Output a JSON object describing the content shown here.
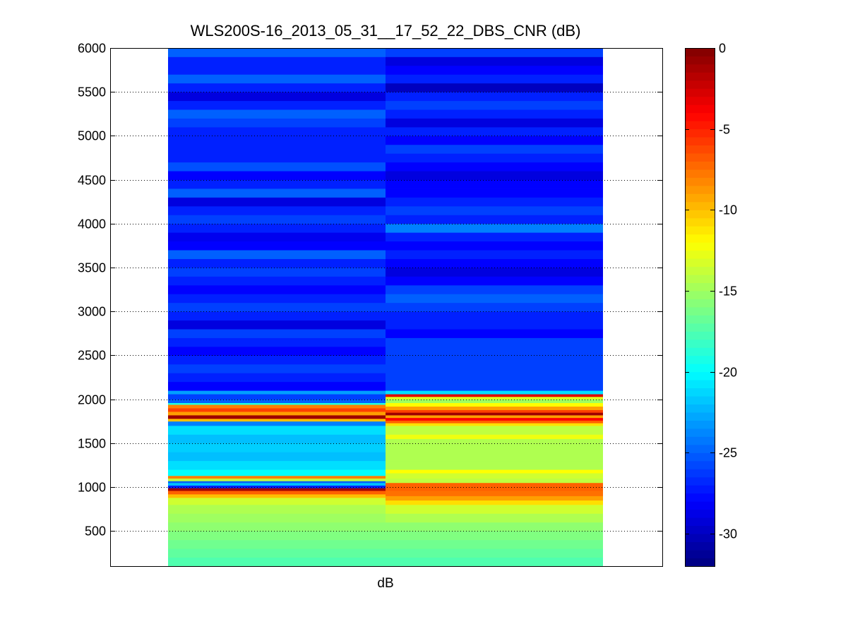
{
  "chart_data": {
    "type": "heatmap",
    "title": "WLS200S-16_2013_05_31__17_52_22_DBS_CNR (dB)",
    "xlabel": "dB",
    "ylabel": "",
    "ylim": [
      100,
      6000
    ],
    "yticks": [
      500,
      1000,
      1500,
      2000,
      2500,
      3000,
      3500,
      4000,
      4500,
      5000,
      5500,
      6000
    ],
    "grid": true,
    "colormap": "jet",
    "colorbar": {
      "range": [
        -32,
        0
      ],
      "ticks": [
        0,
        -5,
        -10,
        -15,
        -20,
        -25,
        -30
      ],
      "tick_labels": [
        "0",
        "-5",
        "-10",
        "-15",
        "-20",
        "-25",
        "-30"
      ]
    },
    "row_height_m": 100,
    "columns": [
      {
        "rows": [
          [
            100,
            200,
            -17.5
          ],
          [
            200,
            300,
            -17
          ],
          [
            300,
            400,
            -16.5
          ],
          [
            400,
            500,
            -16
          ],
          [
            500,
            600,
            -15.5
          ],
          [
            600,
            700,
            -15
          ],
          [
            700,
            800,
            -14.5
          ],
          [
            800,
            880,
            -13.5
          ],
          [
            880,
            920,
            -10
          ],
          [
            920,
            960,
            -7
          ],
          [
            960,
            990,
            -1
          ],
          [
            990,
            1020,
            -27
          ],
          [
            1020,
            1050,
            -22
          ],
          [
            1050,
            1070,
            -25
          ],
          [
            1070,
            1100,
            -14
          ],
          [
            1100,
            1130,
            -8
          ],
          [
            1130,
            1200,
            -20
          ],
          [
            1200,
            1300,
            -21
          ],
          [
            1300,
            1400,
            -22
          ],
          [
            1400,
            1500,
            -21.5
          ],
          [
            1500,
            1600,
            -22
          ],
          [
            1600,
            1700,
            -21
          ],
          [
            1700,
            1750,
            -24
          ],
          [
            1750,
            1780,
            -10
          ],
          [
            1780,
            1820,
            -1
          ],
          [
            1820,
            1860,
            -9
          ],
          [
            1860,
            1900,
            -6
          ],
          [
            1900,
            1940,
            -8
          ],
          [
            1940,
            1960,
            -19
          ],
          [
            1960,
            2000,
            -25
          ],
          [
            2000,
            2060,
            -26
          ],
          [
            2060,
            2100,
            -23
          ],
          [
            2100,
            2200,
            -28
          ],
          [
            2200,
            2300,
            -27
          ],
          [
            2300,
            2400,
            -26
          ],
          [
            2400,
            2500,
            -27
          ],
          [
            2500,
            2600,
            -28
          ],
          [
            2600,
            2700,
            -27
          ],
          [
            2700,
            2800,
            -26
          ],
          [
            2800,
            2900,
            -29
          ],
          [
            2900,
            3000,
            -27
          ],
          [
            3000,
            3100,
            -26
          ],
          [
            3100,
            3200,
            -27
          ],
          [
            3200,
            3300,
            -28
          ],
          [
            3300,
            3400,
            -27
          ],
          [
            3400,
            3500,
            -26
          ],
          [
            3500,
            3600,
            -27
          ],
          [
            3600,
            3700,
            -25
          ],
          [
            3700,
            3800,
            -28
          ],
          [
            3800,
            3900,
            -28.5
          ],
          [
            3900,
            4000,
            -27
          ],
          [
            4000,
            4100,
            -26
          ],
          [
            4100,
            4200,
            -27
          ],
          [
            4200,
            4300,
            -29
          ],
          [
            4300,
            4400,
            -25
          ],
          [
            4400,
            4500,
            -27
          ],
          [
            4500,
            4600,
            -28
          ],
          [
            4600,
            4700,
            -25.5
          ],
          [
            4700,
            4800,
            -27
          ],
          [
            4800,
            4900,
            -27
          ],
          [
            4900,
            5000,
            -27
          ],
          [
            5000,
            5100,
            -27
          ],
          [
            5100,
            5200,
            -26
          ],
          [
            5200,
            5300,
            -25
          ],
          [
            5300,
            5400,
            -27
          ],
          [
            5400,
            5500,
            -29
          ],
          [
            5500,
            5600,
            -27
          ],
          [
            5600,
            5700,
            -25
          ],
          [
            5700,
            5800,
            -27
          ],
          [
            5800,
            5900,
            -27
          ],
          [
            5900,
            6000,
            -25
          ]
        ]
      },
      {
        "rows": [
          [
            100,
            200,
            -17.5
          ],
          [
            200,
            300,
            -17
          ],
          [
            300,
            400,
            -16.5
          ],
          [
            400,
            500,
            -16
          ],
          [
            500,
            600,
            -15.5
          ],
          [
            600,
            700,
            -14.5
          ],
          [
            700,
            800,
            -13.5
          ],
          [
            800,
            850,
            -11
          ],
          [
            850,
            900,
            -9
          ],
          [
            900,
            960,
            -7.5
          ],
          [
            960,
            1050,
            -7
          ],
          [
            1050,
            1100,
            -14
          ],
          [
            1100,
            1160,
            -13.5
          ],
          [
            1160,
            1200,
            -12
          ],
          [
            1200,
            1300,
            -14.5
          ],
          [
            1300,
            1400,
            -14.5
          ],
          [
            1400,
            1500,
            -14.5
          ],
          [
            1500,
            1550,
            -14.5
          ],
          [
            1550,
            1600,
            -12.5
          ],
          [
            1600,
            1700,
            -14
          ],
          [
            1700,
            1730,
            -11
          ],
          [
            1730,
            1760,
            -7
          ],
          [
            1760,
            1790,
            -4
          ],
          [
            1790,
            1820,
            -9
          ],
          [
            1820,
            1850,
            -1
          ],
          [
            1850,
            1880,
            -6
          ],
          [
            1880,
            1920,
            -9
          ],
          [
            1920,
            1960,
            -12
          ],
          [
            1960,
            2000,
            -15
          ],
          [
            2000,
            2030,
            -13
          ],
          [
            2030,
            2060,
            -3
          ],
          [
            2060,
            2100,
            -21
          ],
          [
            2100,
            2200,
            -26
          ],
          [
            2200,
            2300,
            -26
          ],
          [
            2300,
            2400,
            -26
          ],
          [
            2400,
            2500,
            -26
          ],
          [
            2500,
            2600,
            -26
          ],
          [
            2600,
            2700,
            -26
          ],
          [
            2700,
            2800,
            -28
          ],
          [
            2800,
            2900,
            -27
          ],
          [
            2900,
            3000,
            -27
          ],
          [
            3000,
            3100,
            -26
          ],
          [
            3100,
            3200,
            -25
          ],
          [
            3200,
            3300,
            -26
          ],
          [
            3300,
            3400,
            -28
          ],
          [
            3400,
            3500,
            -29
          ],
          [
            3500,
            3600,
            -28
          ],
          [
            3600,
            3700,
            -27
          ],
          [
            3700,
            3800,
            -28
          ],
          [
            3800,
            3900,
            -27
          ],
          [
            3900,
            4000,
            -24
          ],
          [
            4000,
            4100,
            -27
          ],
          [
            4100,
            4200,
            -26
          ],
          [
            4200,
            4300,
            -27
          ],
          [
            4300,
            4400,
            -28
          ],
          [
            4400,
            4500,
            -28
          ],
          [
            4500,
            4600,
            -29
          ],
          [
            4600,
            4700,
            -28
          ],
          [
            4700,
            4800,
            -27
          ],
          [
            4800,
            4900,
            -26
          ],
          [
            4900,
            5000,
            -28
          ],
          [
            5000,
            5100,
            -27
          ],
          [
            5100,
            5200,
            -29
          ],
          [
            5200,
            5300,
            -27
          ],
          [
            5300,
            5400,
            -26
          ],
          [
            5400,
            5500,
            -27
          ],
          [
            5500,
            5600,
            -30
          ],
          [
            5600,
            5700,
            -27
          ],
          [
            5700,
            5800,
            -28
          ],
          [
            5800,
            5900,
            -29
          ],
          [
            5900,
            6000,
            -26
          ]
        ]
      }
    ]
  }
}
